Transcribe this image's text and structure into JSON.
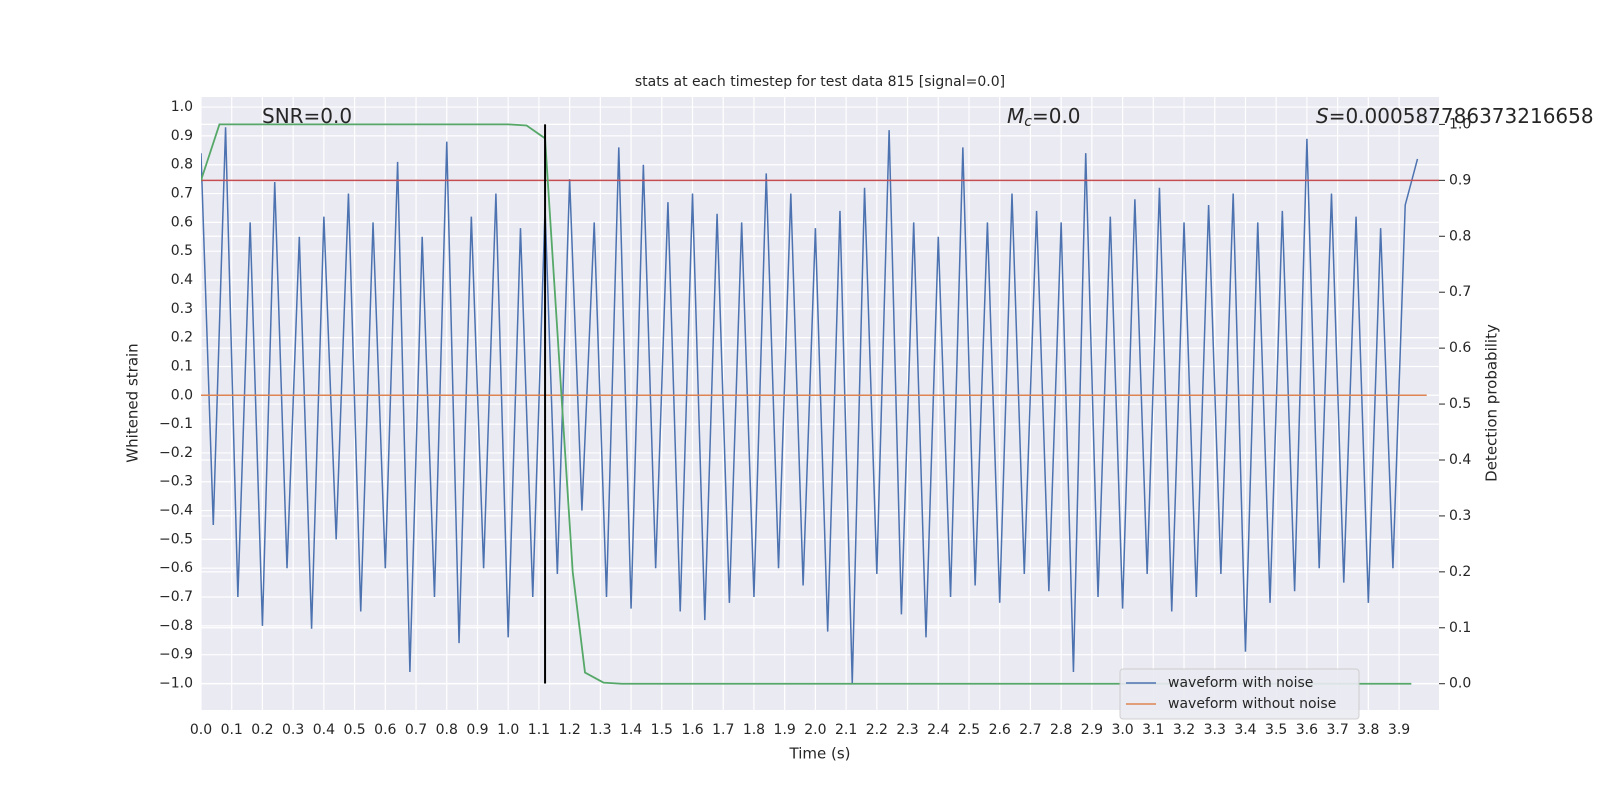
{
  "chart_data": {
    "type": "line",
    "title": "stats at each timestep for test data 815 [signal=0.0]",
    "x_label": "Time (s)",
    "y_label": "Whitened strain",
    "y2_label": "Detection probability",
    "annotations": [
      {
        "text": "SNR=0.0"
      },
      {
        "italic": "M",
        "sub": "c",
        "text": "=0.0"
      },
      {
        "italic": "S",
        "text": "=0.000587786373216658"
      }
    ],
    "xlim": [
      0,
      4.03
    ],
    "ylim": [
      -1.092,
      1.035
    ],
    "y2lim": [
      -0.047,
      1.049
    ],
    "grid": true,
    "legend": "lower right",
    "xticks": [
      {
        "value": 0,
        "label": "0.0"
      },
      {
        "value": 0.1,
        "label": "0.1"
      },
      {
        "value": 0.2,
        "label": "0.2"
      },
      {
        "value": 0.3,
        "label": "0.3"
      },
      {
        "value": 0.4,
        "label": "0.4"
      },
      {
        "value": 0.5,
        "label": "0.5"
      },
      {
        "value": 0.6,
        "label": "0.6"
      },
      {
        "value": 0.7,
        "label": "0.7"
      },
      {
        "value": 0.8,
        "label": "0.8"
      },
      {
        "value": 0.9,
        "label": "0.9"
      },
      {
        "value": 1,
        "label": "1.0"
      },
      {
        "value": 1.1,
        "label": "1.1"
      },
      {
        "value": 1.2,
        "label": "1.2"
      },
      {
        "value": 1.3,
        "label": "1.3"
      },
      {
        "value": 1.4,
        "label": "1.4"
      },
      {
        "value": 1.5,
        "label": "1.5"
      },
      {
        "value": 1.6,
        "label": "1.6"
      },
      {
        "value": 1.7,
        "label": "1.7"
      },
      {
        "value": 1.8,
        "label": "1.8"
      },
      {
        "value": 1.9,
        "label": "1.9"
      },
      {
        "value": 2,
        "label": "2.0"
      },
      {
        "value": 2.1,
        "label": "2.1"
      },
      {
        "value": 2.2,
        "label": "2.2"
      },
      {
        "value": 2.3,
        "label": "2.3"
      },
      {
        "value": 2.4,
        "label": "2.4"
      },
      {
        "value": 2.5,
        "label": "2.5"
      },
      {
        "value": 2.6,
        "label": "2.6"
      },
      {
        "value": 2.7,
        "label": "2.7"
      },
      {
        "value": 2.8,
        "label": "2.8"
      },
      {
        "value": 2.9,
        "label": "2.9"
      },
      {
        "value": 3,
        "label": "3.0"
      },
      {
        "value": 3.1,
        "label": "3.1"
      },
      {
        "value": 3.2,
        "label": "3.2"
      },
      {
        "value": 3.3,
        "label": "3.3"
      },
      {
        "value": 3.4,
        "label": "3.4"
      },
      {
        "value": 3.5,
        "label": "3.5"
      },
      {
        "value": 3.6,
        "label": "3.6"
      },
      {
        "value": 3.7,
        "label": "3.7"
      },
      {
        "value": 3.8,
        "label": "3.8"
      },
      {
        "value": 3.9,
        "label": "3.9"
      }
    ],
    "yticks": [
      {
        "value": -1,
        "label": "−1.0"
      },
      {
        "value": -0.9,
        "label": "−0.9"
      },
      {
        "value": -0.8,
        "label": "−0.8"
      },
      {
        "value": -0.7,
        "label": "−0.7"
      },
      {
        "value": -0.6,
        "label": "−0.6"
      },
      {
        "value": -0.5,
        "label": "−0.5"
      },
      {
        "value": -0.4,
        "label": "−0.4"
      },
      {
        "value": -0.3,
        "label": "−0.3"
      },
      {
        "value": -0.2,
        "label": "−0.2"
      },
      {
        "value": -0.1,
        "label": "−0.1"
      },
      {
        "value": 0,
        "label": "0.0"
      },
      {
        "value": 0.1,
        "label": "0.1"
      },
      {
        "value": 0.2,
        "label": "0.2"
      },
      {
        "value": 0.3,
        "label": "0.3"
      },
      {
        "value": 0.4,
        "label": "0.4"
      },
      {
        "value": 0.5,
        "label": "0.5"
      },
      {
        "value": 0.6,
        "label": "0.6"
      },
      {
        "value": 0.7,
        "label": "0.7"
      },
      {
        "value": 0.8,
        "label": "0.8"
      },
      {
        "value": 0.9,
        "label": "0.9"
      },
      {
        "value": 1,
        "label": "1.0"
      }
    ],
    "y2ticks": [
      {
        "value": 0,
        "label": "0.0"
      },
      {
        "value": 0.1,
        "label": "0.1"
      },
      {
        "value": 0.2,
        "label": "0.2"
      },
      {
        "value": 0.3,
        "label": "0.3"
      },
      {
        "value": 0.4,
        "label": "0.4"
      },
      {
        "value": 0.5,
        "label": "0.5"
      },
      {
        "value": 0.6,
        "label": "0.6"
      },
      {
        "value": 0.7,
        "label": "0.7"
      },
      {
        "value": 0.8,
        "label": "0.8"
      },
      {
        "value": 0.9,
        "label": "0.9"
      },
      {
        "value": 1,
        "label": "1.0"
      }
    ],
    "series": [
      {
        "name": "waveform with noise",
        "color": "#4c72b0",
        "x": [
          0,
          0.04,
          0.08,
          0.12,
          0.16,
          0.2,
          0.24,
          0.28,
          0.32,
          0.36,
          0.4,
          0.44,
          0.48,
          0.52,
          0.56,
          0.6,
          0.64,
          0.68,
          0.72,
          0.76,
          0.8,
          0.84,
          0.88,
          0.92,
          0.96,
          1,
          1.04,
          1.08,
          1.12,
          1.16,
          1.2,
          1.24,
          1.28,
          1.32,
          1.36,
          1.4,
          1.44,
          1.48,
          1.52,
          1.56,
          1.6,
          1.64,
          1.68,
          1.72,
          1.76,
          1.8,
          1.84,
          1.88,
          1.92,
          1.96,
          2,
          2.04,
          2.08,
          2.12,
          2.16,
          2.2,
          2.24,
          2.28,
          2.32,
          2.36,
          2.4,
          2.44,
          2.48,
          2.52,
          2.56,
          2.6,
          2.64,
          2.68,
          2.72,
          2.76,
          2.8,
          2.84,
          2.88,
          2.92,
          2.96,
          3,
          3.04,
          3.08,
          3.12,
          3.16,
          3.2,
          3.24,
          3.28,
          3.32,
          3.36,
          3.4,
          3.44,
          3.48,
          3.52,
          3.56,
          3.6,
          3.64,
          3.68,
          3.72,
          3.76,
          3.8,
          3.84,
          3.88,
          3.92,
          3.96
        ],
        "values": [
          0.84,
          -0.45,
          0.93,
          -0.7,
          0.6,
          -0.8,
          0.74,
          -0.6,
          0.55,
          -0.81,
          0.62,
          -0.5,
          0.7,
          -0.75,
          0.6,
          -0.6,
          0.81,
          -0.96,
          0.55,
          -0.7,
          0.88,
          -0.86,
          0.62,
          -0.6,
          0.7,
          -0.84,
          0.58,
          -0.7,
          0.65,
          -0.62,
          0.75,
          -0.4,
          0.6,
          -0.7,
          0.86,
          -0.74,
          0.8,
          -0.6,
          0.67,
          -0.75,
          0.7,
          -0.78,
          0.63,
          -0.72,
          0.6,
          -0.7,
          0.77,
          -0.6,
          0.7,
          -0.66,
          0.58,
          -0.82,
          0.64,
          -1.0,
          0.72,
          -0.62,
          0.92,
          -0.76,
          0.6,
          -0.84,
          0.55,
          -0.7,
          0.86,
          -0.66,
          0.6,
          -0.72,
          0.7,
          -0.62,
          0.64,
          -0.68,
          0.6,
          -0.96,
          0.84,
          -0.7,
          0.62,
          -0.74,
          0.68,
          -0.62,
          0.72,
          -0.75,
          0.6,
          -0.7,
          0.66,
          -0.62,
          0.7,
          -0.89,
          0.6,
          -0.72,
          0.64,
          -0.68,
          0.89,
          -0.6,
          0.7,
          -0.65,
          0.62,
          -0.72,
          0.58,
          -0.6,
          0.66,
          0.82
        ]
      },
      {
        "name": "waveform without noise",
        "color": "#dd8452",
        "x": [
          0,
          3.99
        ],
        "values": [
          0,
          0
        ]
      }
    ],
    "probability": {
      "color": "#55a868",
      "axis": "y2",
      "x": [
        0,
        0.06,
        0.12,
        1.0,
        1.06,
        1.12,
        1.21,
        1.25,
        1.31,
        1.37,
        3.94
      ],
      "values": [
        0.9,
        1.0,
        1.0,
        1.0,
        0.998,
        0.975,
        0.2,
        0.02,
        0.002,
        0,
        0
      ]
    },
    "threshold": {
      "color": "#c44e52",
      "axis": "y2",
      "value": 0.9
    },
    "vline": {
      "color": "#000000",
      "x": 1.12,
      "ymin": -1.0,
      "ymax": 0.94
    }
  }
}
